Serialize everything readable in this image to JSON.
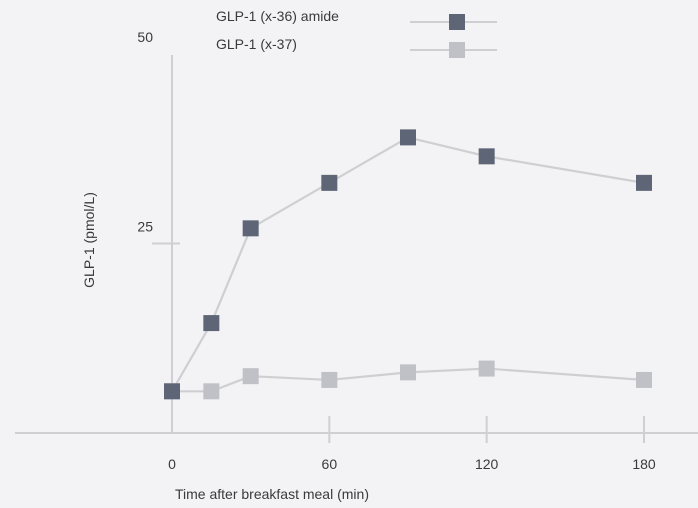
{
  "chart_data": {
    "type": "line",
    "xlabel": "Time after breakfast meal (min)",
    "ylabel": "GLP-1 (pmol/L)",
    "x_ticks": [
      0,
      60,
      120,
      180
    ],
    "y_ticks": [
      25,
      50
    ],
    "xlim": [
      0,
      180
    ],
    "ylim": [
      0,
      50
    ],
    "legend_position": "top-center",
    "grid": false,
    "series": [
      {
        "name": "GLP-1 (x-36) amide",
        "color": "#5e6577",
        "line_color": "#cfcfd3",
        "marker": "square",
        "x": [
          0,
          15,
          30,
          60,
          90,
          120,
          180
        ],
        "y": [
          5.5,
          14.5,
          27,
          33,
          39,
          36.5,
          33
        ]
      },
      {
        "name": "GLP-1 (x-37)",
        "color": "#c0c1c6",
        "line_color": "#cfcfd3",
        "marker": "square",
        "x": [
          0,
          15,
          30,
          60,
          90,
          120,
          180
        ],
        "y": [
          5.5,
          5.5,
          7.5,
          7,
          8,
          8.5,
          7
        ]
      }
    ]
  }
}
